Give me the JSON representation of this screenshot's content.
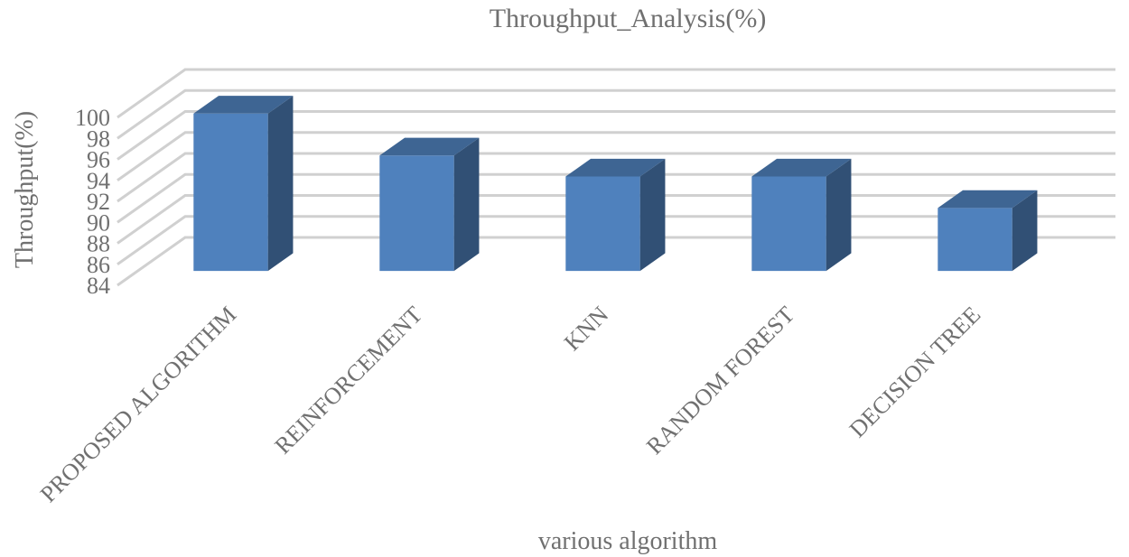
{
  "chart_data": {
    "type": "bar3d",
    "title": "Throughput_Analysis(%)",
    "x_label": "various algorithm",
    "y_label": "Throughput(%)",
    "categories": [
      "PROPOSED ALGORITHM",
      "REINFORCEMENT",
      "KNN",
      "RANDOM FOREST",
      "DECISION TREE"
    ],
    "values": [
      99,
      95,
      93,
      93,
      90
    ],
    "color": "#4f81bd",
    "ylim": [
      84,
      100
    ],
    "yticks": [
      84,
      86,
      88,
      90,
      92,
      94,
      96,
      98,
      100
    ],
    "grid": true
  }
}
